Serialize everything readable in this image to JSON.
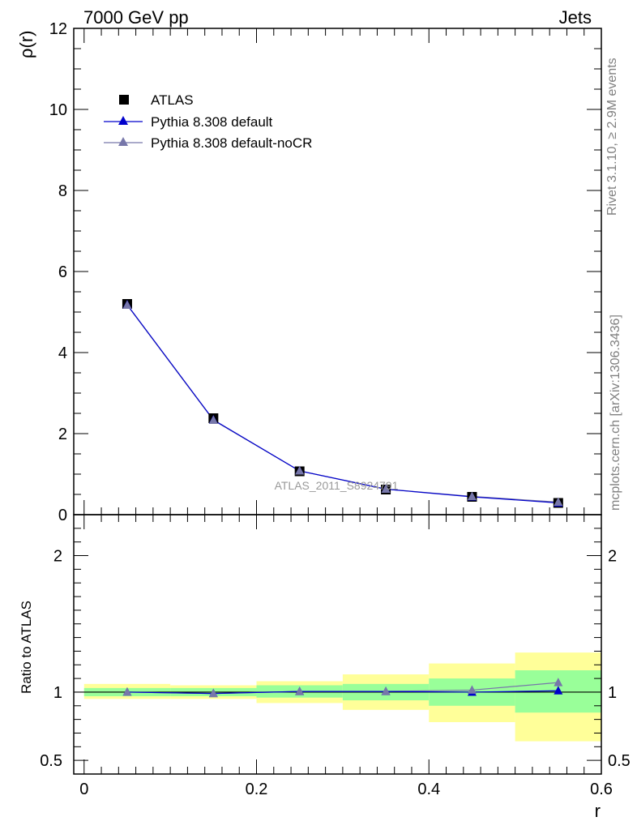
{
  "header": {
    "left_title": "7000 GeV pp",
    "right_title": "Jets"
  },
  "side_text": {
    "rivet": "Rivet 3.1.10, ≥ 2.9M events",
    "mcplots": "mcplots.cern.ch [arXiv:1306.3436]"
  },
  "watermark": "ATLAS_2011_S8924791",
  "colors": {
    "data": "#000000",
    "pythia_default": "#0000cc",
    "pythia_nocr": "#7777aa",
    "band_inner": "#99ff99",
    "band_outer": "#ffff99"
  },
  "chart_data": [
    {
      "type": "line",
      "panel": "main",
      "ylabel": "ρ(r)",
      "xlim": [
        -0.012,
        0.6
      ],
      "ylim": [
        0,
        12
      ],
      "yticks": [
        0,
        2,
        4,
        6,
        8,
        10,
        12
      ],
      "ytick_labels": [
        "0",
        "2",
        "4",
        "6",
        "8",
        "10",
        "12"
      ],
      "x": [
        0.05,
        0.15,
        0.25,
        0.35,
        0.45,
        0.55
      ],
      "legend_position": "top-left",
      "series": [
        {
          "name": "ATLAS",
          "marker": "square",
          "values": [
            5.2,
            2.38,
            1.07,
            0.62,
            0.44,
            0.29
          ]
        },
        {
          "name": "Pythia 8.308 default",
          "marker": "triangle",
          "values": [
            5.18,
            2.34,
            1.08,
            0.63,
            0.44,
            0.29
          ]
        },
        {
          "name": "Pythia 8.308 default-noCR",
          "marker": "triangle",
          "values": [
            5.17,
            2.33,
            1.08,
            0.63,
            0.45,
            0.31
          ]
        }
      ]
    },
    {
      "type": "line",
      "panel": "ratio",
      "ylabel": "Ratio to ATLAS",
      "xlabel": "r",
      "xlim": [
        -0.012,
        0.6
      ],
      "ylim": [
        0.4,
        2.3
      ],
      "yticks": [
        0.5,
        1,
        2
      ],
      "ytick_labels": [
        "0.5",
        "1",
        "2"
      ],
      "xticks": [
        0,
        0.2,
        0.4,
        0.6
      ],
      "xtick_labels": [
        "0",
        "0.2",
        "0.4",
        "0.6"
      ],
      "bin_edges": [
        0,
        0.1,
        0.2,
        0.3,
        0.4,
        0.5,
        0.6
      ],
      "band_inner": [
        [
          0.97,
          1.03
        ],
        [
          0.97,
          1.03
        ],
        [
          0.96,
          1.05
        ],
        [
          0.94,
          1.06
        ],
        [
          0.9,
          1.1
        ],
        [
          0.85,
          1.16
        ]
      ],
      "band_outer": [
        [
          0.95,
          1.06
        ],
        [
          0.95,
          1.05
        ],
        [
          0.92,
          1.08
        ],
        [
          0.87,
          1.13
        ],
        [
          0.78,
          1.21
        ],
        [
          0.64,
          1.29
        ]
      ],
      "x": [
        0.05,
        0.15,
        0.25,
        0.35,
        0.45,
        0.55
      ],
      "series": [
        {
          "name": "Pythia 8.308 default",
          "values": [
            1.0,
            0.99,
            1.005,
            1.005,
            1.0,
            1.01
          ]
        },
        {
          "name": "Pythia 8.308 default-noCR",
          "values": [
            1.0,
            0.99,
            1.005,
            1.005,
            1.015,
            1.07
          ]
        }
      ]
    }
  ]
}
